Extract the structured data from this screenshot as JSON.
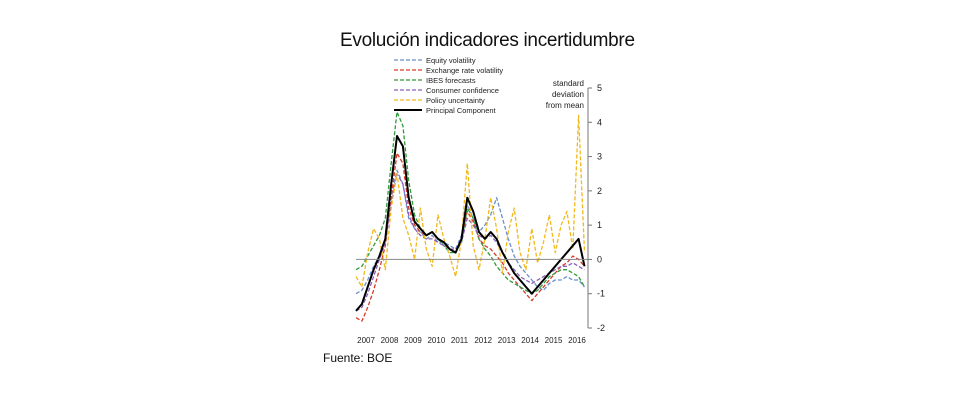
{
  "chart_data": {
    "type": "line",
    "title": "Evolución indicadores incertidumbre",
    "source": "Fuente: BOE",
    "axis_label": [
      "standard",
      "deviation",
      "from mean"
    ],
    "ylim": [
      -2,
      5
    ],
    "yticks": [
      -2,
      -1,
      0,
      1,
      2,
      3,
      4,
      5
    ],
    "xlim": [
      2007.0,
      2016.9
    ],
    "xtick_labels": [
      "2007",
      "2008",
      "2009",
      "2010",
      "2011",
      "2012",
      "2013",
      "2014",
      "2015",
      "2016"
    ],
    "legend_position": "top",
    "series": [
      {
        "name": "Equity volatility",
        "color": "#6b8fc9",
        "dash": "dashed",
        "x": [
          2007.0,
          2007.25,
          2007.5,
          2007.75,
          2008.0,
          2008.25,
          2008.5,
          2008.75,
          2009.0,
          2009.25,
          2009.5,
          2009.75,
          2010.0,
          2010.25,
          2010.5,
          2010.75,
          2011.0,
          2011.25,
          2011.5,
          2011.75,
          2012.0,
          2012.25,
          2012.5,
          2012.75,
          2013.0,
          2013.25,
          2013.5,
          2013.75,
          2014.0,
          2014.25,
          2014.5,
          2014.75,
          2015.0,
          2015.25,
          2015.5,
          2015.75,
          2016.0,
          2016.25,
          2016.5,
          2016.75
        ],
        "y": [
          -1.0,
          -0.9,
          -0.6,
          -0.2,
          0.1,
          0.6,
          1.8,
          2.6,
          2.2,
          1.2,
          0.9,
          0.8,
          0.6,
          0.7,
          0.5,
          0.5,
          0.4,
          0.3,
          0.7,
          1.6,
          1.2,
          0.8,
          1.0,
          1.3,
          1.8,
          1.2,
          0.6,
          0.1,
          -0.2,
          -0.4,
          -0.6,
          -0.8,
          -0.9,
          -0.7,
          -0.6,
          -0.6,
          -0.5,
          -0.6,
          -0.6,
          -0.8
        ]
      },
      {
        "name": "Exchange rate volatility",
        "color": "#d63a2a",
        "dash": "dashed",
        "x": [
          2007.0,
          2007.25,
          2007.5,
          2007.75,
          2008.0,
          2008.25,
          2008.5,
          2008.75,
          2009.0,
          2009.25,
          2009.5,
          2009.75,
          2010.0,
          2010.25,
          2010.5,
          2010.75,
          2011.0,
          2011.25,
          2011.5,
          2011.75,
          2012.0,
          2012.25,
          2012.5,
          2012.75,
          2013.0,
          2013.25,
          2013.5,
          2013.75,
          2014.0,
          2014.25,
          2014.5,
          2014.75,
          2015.0,
          2015.25,
          2015.5,
          2015.75,
          2016.0,
          2016.25,
          2016.5,
          2016.75
        ],
        "y": [
          -1.7,
          -1.8,
          -1.4,
          -0.9,
          -0.3,
          0.4,
          1.8,
          3.1,
          2.8,
          1.5,
          1.0,
          0.8,
          0.7,
          0.8,
          0.6,
          0.5,
          0.3,
          0.2,
          0.6,
          1.4,
          1.1,
          0.6,
          0.4,
          0.3,
          0.1,
          -0.1,
          -0.4,
          -0.6,
          -0.8,
          -1.0,
          -1.2,
          -1.0,
          -0.8,
          -0.6,
          -0.4,
          -0.2,
          -0.1,
          0.1,
          0.0,
          -0.2
        ]
      },
      {
        "name": "IBES forecasts",
        "color": "#2f9b3a",
        "dash": "dashed",
        "x": [
          2007.0,
          2007.25,
          2007.5,
          2007.75,
          2008.0,
          2008.25,
          2008.5,
          2008.75,
          2009.0,
          2009.25,
          2009.5,
          2009.75,
          2010.0,
          2010.25,
          2010.5,
          2010.75,
          2011.0,
          2011.25,
          2011.5,
          2011.75,
          2012.0,
          2012.25,
          2012.5,
          2012.75,
          2013.0,
          2013.25,
          2013.5,
          2013.75,
          2014.0,
          2014.25,
          2014.5,
          2014.75,
          2015.0,
          2015.25,
          2015.5,
          2015.75,
          2016.0,
          2016.25,
          2016.5,
          2016.75
        ],
        "y": [
          -0.3,
          -0.2,
          0.1,
          0.4,
          0.7,
          1.2,
          2.8,
          4.3,
          3.9,
          2.3,
          1.3,
          0.9,
          0.7,
          0.8,
          0.6,
          0.4,
          0.2,
          0.2,
          0.5,
          1.5,
          1.2,
          0.6,
          0.3,
          0.1,
          -0.2,
          -0.4,
          -0.6,
          -0.7,
          -0.8,
          -0.9,
          -1.0,
          -0.9,
          -0.7,
          -0.5,
          -0.4,
          -0.3,
          -0.3,
          -0.4,
          -0.5,
          -0.8
        ]
      },
      {
        "name": "Consumer confidence",
        "color": "#8a5fb8",
        "dash": "dashed",
        "x": [
          2007.0,
          2007.25,
          2007.5,
          2007.75,
          2008.0,
          2008.25,
          2008.5,
          2008.75,
          2009.0,
          2009.25,
          2009.5,
          2009.75,
          2010.0,
          2010.25,
          2010.5,
          2010.75,
          2011.0,
          2011.25,
          2011.5,
          2011.75,
          2012.0,
          2012.25,
          2012.5,
          2012.75,
          2013.0,
          2013.25,
          2013.5,
          2013.75,
          2014.0,
          2014.25,
          2014.5,
          2014.75,
          2015.0,
          2015.25,
          2015.5,
          2015.75,
          2016.0,
          2016.25,
          2016.5,
          2016.75
        ],
        "y": [
          -1.5,
          -1.4,
          -1.0,
          -0.5,
          0.0,
          0.5,
          1.6,
          2.5,
          2.2,
          1.3,
          0.9,
          0.7,
          0.6,
          0.6,
          0.5,
          0.4,
          0.3,
          0.3,
          0.5,
          1.2,
          1.0,
          0.7,
          0.6,
          0.7,
          0.5,
          0.2,
          -0.1,
          -0.3,
          -0.5,
          -0.6,
          -0.7,
          -0.6,
          -0.5,
          -0.4,
          -0.3,
          -0.2,
          -0.2,
          -0.1,
          -0.2,
          -0.3
        ]
      },
      {
        "name": "Policy uncertainty",
        "color": "#f2b81c",
        "dash": "dashed",
        "x": [
          2007.0,
          2007.25,
          2007.5,
          2007.75,
          2008.0,
          2008.25,
          2008.5,
          2008.75,
          2009.0,
          2009.25,
          2009.5,
          2009.75,
          2010.0,
          2010.25,
          2010.5,
          2010.75,
          2011.0,
          2011.25,
          2011.5,
          2011.75,
          2012.0,
          2012.25,
          2012.5,
          2012.75,
          2013.0,
          2013.25,
          2013.5,
          2013.75,
          2014.0,
          2014.25,
          2014.5,
          2014.75,
          2015.0,
          2015.25,
          2015.5,
          2015.75,
          2016.0,
          2016.25,
          2016.5,
          2016.75
        ],
        "y": [
          -0.5,
          -0.8,
          0.2,
          0.9,
          0.6,
          -0.3,
          1.5,
          2.5,
          1.2,
          0.7,
          0.0,
          1.5,
          0.3,
          -0.2,
          1.3,
          0.6,
          0.1,
          -0.5,
          0.6,
          2.8,
          0.4,
          -0.3,
          0.6,
          1.8,
          0.9,
          -0.4,
          0.8,
          1.5,
          0.2,
          -0.3,
          0.9,
          -0.1,
          0.5,
          1.3,
          0.2,
          1.0,
          1.4,
          0.3,
          4.2,
          0.2
        ]
      },
      {
        "name": "Principal Component",
        "color": "#000000",
        "dash": "solid",
        "x": [
          2007.0,
          2007.25,
          2007.5,
          2007.75,
          2008.0,
          2008.25,
          2008.5,
          2008.75,
          2009.0,
          2009.25,
          2009.5,
          2009.75,
          2010.0,
          2010.25,
          2010.5,
          2010.75,
          2011.0,
          2011.25,
          2011.5,
          2011.75,
          2012.0,
          2012.25,
          2012.5,
          2012.75,
          2013.0,
          2013.25,
          2013.5,
          2013.75,
          2014.0,
          2014.25,
          2014.5,
          2014.75,
          2015.0,
          2015.25,
          2015.5,
          2015.75,
          2016.0,
          2016.25,
          2016.5,
          2016.75
        ],
        "y": [
          -1.5,
          -1.3,
          -0.8,
          -0.3,
          0.1,
          0.6,
          2.2,
          3.6,
          3.3,
          1.8,
          1.1,
          0.9,
          0.7,
          0.8,
          0.6,
          0.5,
          0.3,
          0.2,
          0.6,
          1.8,
          1.4,
          0.8,
          0.6,
          0.8,
          0.6,
          0.2,
          -0.1,
          -0.4,
          -0.6,
          -0.8,
          -1.0,
          -0.8,
          -0.6,
          -0.4,
          -0.2,
          0.0,
          0.2,
          0.4,
          0.6,
          -0.2
        ]
      }
    ]
  }
}
